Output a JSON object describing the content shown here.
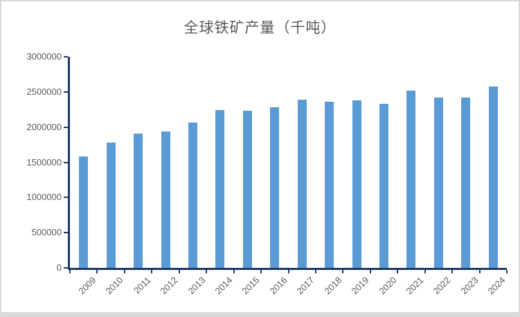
{
  "chart_data": {
    "type": "bar",
    "title": "全球铁矿产量（千吨）",
    "categories": [
      "2009",
      "2010",
      "2011",
      "2012",
      "2013",
      "2014",
      "2015",
      "2016",
      "2017",
      "2018",
      "2019",
      "2020",
      "2021",
      "2022",
      "2023",
      "2024"
    ],
    "values": [
      1580000,
      1780000,
      1910000,
      1940000,
      2070000,
      2240000,
      2230000,
      2280000,
      2390000,
      2360000,
      2380000,
      2330000,
      2520000,
      2420000,
      2420000,
      2580000
    ],
    "xlabel": "",
    "ylabel": "",
    "ylim": [
      0,
      3000000
    ],
    "y_ticks": [
      0,
      500000,
      1000000,
      1500000,
      2000000,
      2500000,
      3000000
    ],
    "y_tick_labels": [
      "0",
      "500000",
      "1000000",
      "1500000",
      "2000000",
      "2500000",
      "3000000"
    ],
    "grid": false,
    "legend_position": "none",
    "colors": {
      "bar_fill": "#5b9bd5",
      "axis_line": "#1f3864",
      "tick_label": "#595959",
      "title_text": "#595959",
      "frame_border": "#d9d9d9",
      "background": "#ffffff"
    }
  }
}
